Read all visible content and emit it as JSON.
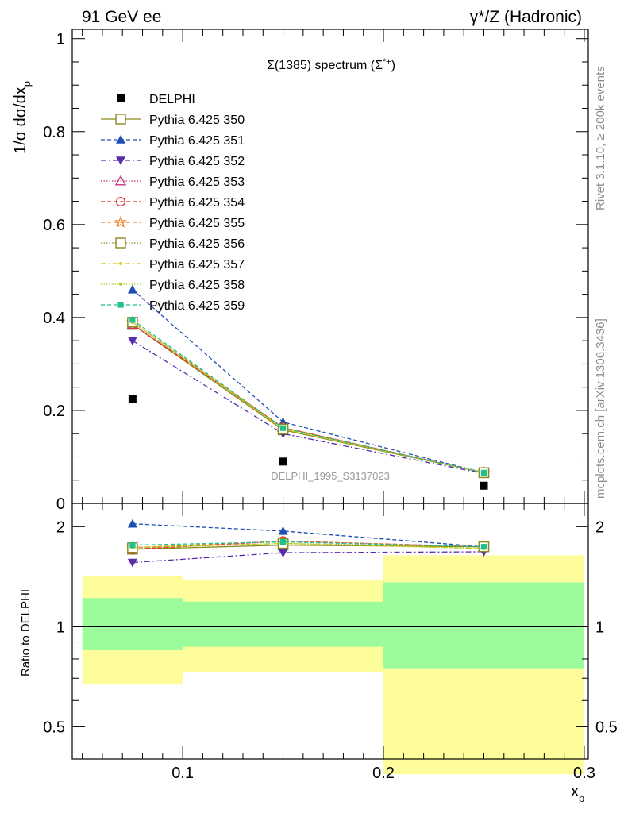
{
  "header": {
    "left": "91 GeV ee",
    "right": "γ*/Z (Hadronic)"
  },
  "side_labels": {
    "rivet": "Rivet 3.1.10, ≥ 200k events",
    "mcplots": "mcplots.cern.ch [arXiv:1306.3436]"
  },
  "chart_data": {
    "type": "line",
    "title": "Σ(1385) spectrum (Σ*+)",
    "title_main": "Σ(1385) spectrum (Σ",
    "title_sup": "*+",
    "title_end": ")",
    "watermark": "DELPHI_1995_S3137023",
    "ylabel": "1/σ dσ/dx",
    "ylabel_sub": "p",
    "xlabel": "x",
    "xlabel_sub": "p",
    "ratio_ylabel": "Ratio to DELPHI",
    "xlim": [
      0.045,
      0.302
    ],
    "ylim": [
      0,
      1.02
    ],
    "ratio_ylim": [
      0.4,
      2.35
    ],
    "ratio_log": true,
    "x_ticks": [
      "0.1",
      "0.2",
      "0.3"
    ],
    "y_ticks": [
      "0",
      "0.2",
      "0.4",
      "0.6",
      "0.8",
      "1"
    ],
    "ratio_ticks": [
      "0.5",
      "1",
      "2"
    ],
    "x": [
      0.075,
      0.15,
      0.25
    ],
    "bin_edges": [
      0.05,
      0.1,
      0.2,
      0.3
    ],
    "data": {
      "name": "DELPHI",
      "values": [
        0.225,
        0.09,
        0.038
      ],
      "band_stat": [
        [
          0.85,
          1.22
        ],
        [
          0.87,
          1.19
        ],
        [
          0.75,
          1.36
        ]
      ],
      "band_total": [
        [
          0.67,
          1.42
        ],
        [
          0.73,
          1.38
        ],
        [
          0.36,
          1.64
        ]
      ]
    },
    "series": [
      {
        "name": "Pythia 6.425 350",
        "values": [
          0.385,
          0.158,
          0.066
        ],
        "ratio": [
          1.71,
          1.76,
          1.74
        ],
        "color": "#8b8b1e",
        "dash": "",
        "marker": "open-square"
      },
      {
        "name": "Pythia 6.425 351",
        "values": [
          0.46,
          0.175,
          0.066
        ],
        "ratio": [
          2.04,
          1.94,
          1.74
        ],
        "color": "#1f4fb4",
        "dash": "5,3",
        "marker": "triangle-up"
      },
      {
        "name": "Pythia 6.425 352",
        "values": [
          0.35,
          0.15,
          0.064
        ],
        "ratio": [
          1.56,
          1.67,
          1.68
        ],
        "color": "#5b2ca8",
        "dash": "7,3,2,3",
        "marker": "triangle-down"
      },
      {
        "name": "Pythia 6.425 353",
        "values": [
          0.385,
          0.163,
          0.066
        ],
        "ratio": [
          1.71,
          1.81,
          1.74
        ],
        "color": "#c2307e",
        "dash": "1.5,2",
        "marker": "open-triangle"
      },
      {
        "name": "Pythia 6.425 354",
        "values": [
          0.385,
          0.163,
          0.066
        ],
        "ratio": [
          1.71,
          1.81,
          1.74
        ],
        "color": "#e02c2c",
        "dash": "5,3",
        "marker": "open-circle"
      },
      {
        "name": "Pythia 6.425 355",
        "values": [
          0.39,
          0.163,
          0.066
        ],
        "ratio": [
          1.73,
          1.81,
          1.74
        ],
        "color": "#ef7a1a",
        "dash": "5,3",
        "marker": "open-star"
      },
      {
        "name": "Pythia 6.425 356",
        "values": [
          0.39,
          0.16,
          0.066
        ],
        "ratio": [
          1.73,
          1.78,
          1.74
        ],
        "color": "#8b8b1e",
        "dash": "1.5,2",
        "marker": "open-square"
      },
      {
        "name": "Pythia 6.425 357",
        "values": [
          0.39,
          0.16,
          0.066
        ],
        "ratio": [
          1.73,
          1.78,
          1.72
        ],
        "color": "#d9c21a",
        "dash": "7,3,2,3",
        "marker": "small-dot"
      },
      {
        "name": "Pythia 6.425 358",
        "values": [
          0.39,
          0.16,
          0.066
        ],
        "ratio": [
          1.73,
          1.78,
          1.72
        ],
        "color": "#a8cf1c",
        "dash": "1.5,2",
        "marker": "small-dot"
      },
      {
        "name": "Pythia 6.425 359",
        "values": [
          0.395,
          0.162,
          0.066
        ],
        "ratio": [
          1.76,
          1.8,
          1.74
        ],
        "color": "#1fc08e",
        "dash": "5,3",
        "marker": "filled-square"
      }
    ],
    "colors": {
      "band_stat": "#9cfc9c",
      "band_total": "#fdfd9c",
      "data_marker": "#000000"
    }
  }
}
